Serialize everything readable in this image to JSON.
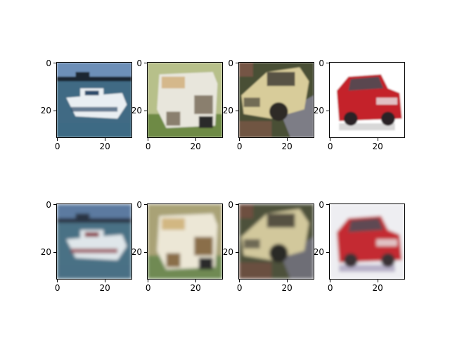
{
  "figure": {
    "rows": 2,
    "cols": 4,
    "panels": [
      {
        "id": "r1c1",
        "subject": "boat",
        "variant": "original",
        "xticks": [
          "0",
          "20"
        ],
        "yticks": [
          "0",
          "20"
        ],
        "colors": {
          "sky": "#6d8fb8",
          "water": "#3f6b84",
          "hull": "#e9eef2",
          "island": "#1b2530",
          "accent": "#2d4c6a"
        }
      },
      {
        "id": "r1c2",
        "subject": "van",
        "variant": "original",
        "xticks": [
          "0",
          "20"
        ],
        "yticks": [
          "0",
          "20"
        ],
        "colors": {
          "bg": "#b7c08a",
          "body": "#e8e6dc",
          "ground": "#6e8a45",
          "shade": "#8a7f6e",
          "accent": "#c89a55"
        }
      },
      {
        "id": "r1c3",
        "subject": "car",
        "variant": "original",
        "xticks": [
          "0",
          "20"
        ],
        "yticks": [
          "0",
          "20"
        ],
        "colors": {
          "bg": "#4a4f35",
          "body": "#d8cc9a",
          "road": "#7d7d86",
          "shade": "#2f2b27",
          "accent": "#a05a54"
        }
      },
      {
        "id": "r1c4",
        "subject": "car",
        "variant": "original",
        "xticks": [
          "0",
          "20"
        ],
        "yticks": [
          "0",
          "20"
        ],
        "colors": {
          "bg": "#ffffff",
          "body": "#c4202a",
          "window": "#5a4750",
          "wheel": "#2a2428",
          "shadow": "#d8d8d8"
        }
      },
      {
        "id": "r2c1",
        "subject": "boat",
        "variant": "reconstruction",
        "xticks": [
          "0",
          "20"
        ],
        "yticks": [
          "0",
          "20"
        ],
        "colors": {
          "sky": "#5c7aa0",
          "water": "#4a7185",
          "hull": "#dfe6ea",
          "island": "#2a3645",
          "accent": "#8a3a44"
        }
      },
      {
        "id": "r2c2",
        "subject": "van",
        "variant": "reconstruction",
        "xticks": [
          "0",
          "20"
        ],
        "yticks": [
          "0",
          "20"
        ],
        "colors": {
          "bg": "#a9a276",
          "body": "#ece7d6",
          "ground": "#6f8a52",
          "shade": "#8a6e4a",
          "accent": "#c2974a"
        }
      },
      {
        "id": "r2c3",
        "subject": "car",
        "variant": "reconstruction",
        "xticks": [
          "0",
          "20"
        ],
        "yticks": [
          "0",
          "20"
        ],
        "colors": {
          "bg": "#4e513a",
          "body": "#d2c89c",
          "road": "#6e6e76",
          "shade": "#2c2a26",
          "accent": "#8e4e48"
        }
      },
      {
        "id": "r2c4",
        "subject": "car",
        "variant": "reconstruction",
        "xticks": [
          "0",
          "20"
        ],
        "yticks": [
          "0",
          "20"
        ],
        "colors": {
          "bg": "#eeeef2",
          "body": "#c42c30",
          "window": "#5e4a52",
          "wheel": "#3a3034",
          "shadow": "#b7b0c8"
        }
      }
    ]
  }
}
